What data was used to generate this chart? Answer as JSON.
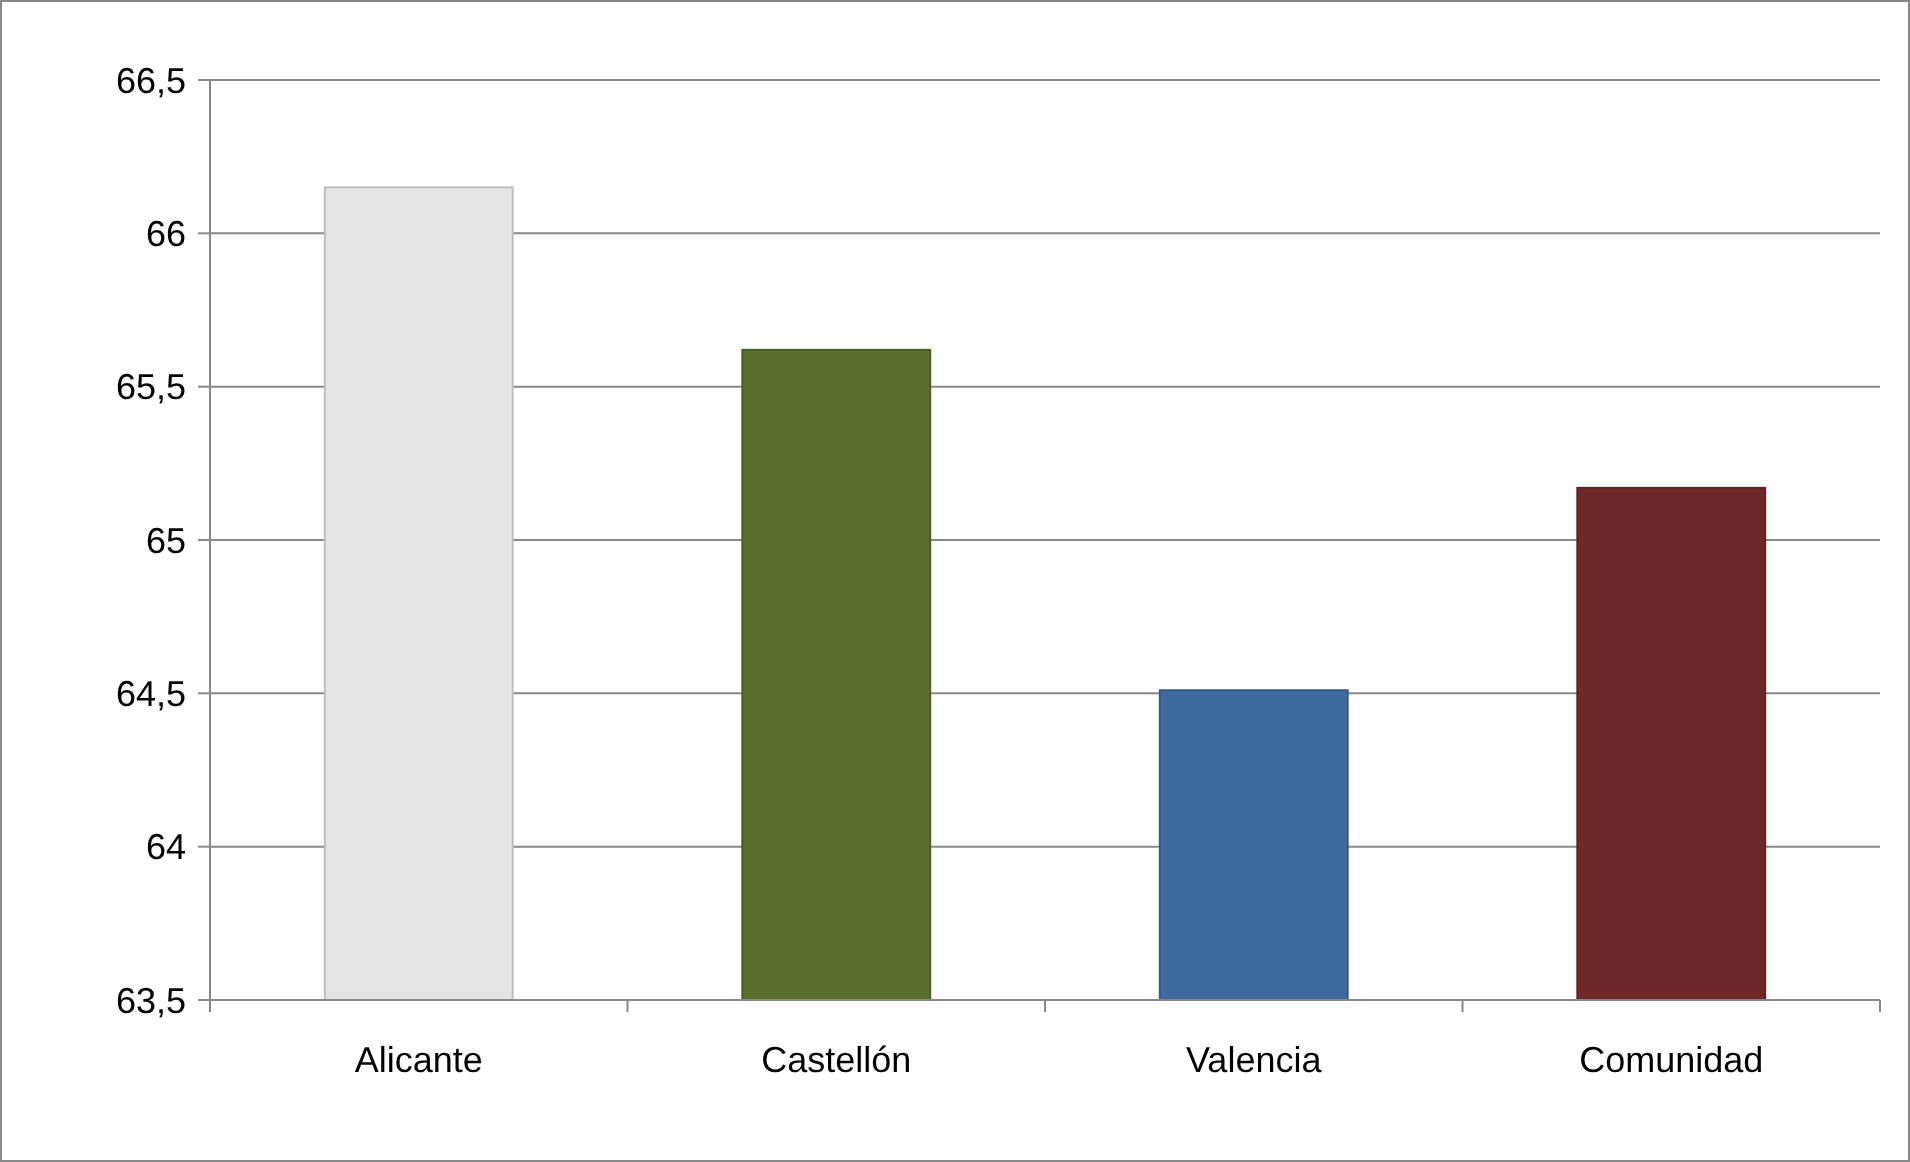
{
  "chart_data": {
    "type": "bar",
    "categories": [
      "Alicante",
      "Castellón",
      "Valencia",
      "Comunidad"
    ],
    "values": [
      66.15,
      65.62,
      64.51,
      65.17
    ],
    "colors": [
      "#e4e4e4",
      "#5a6e2e",
      "#3f6a9e",
      "#6e2a2a"
    ],
    "ylim": [
      63.5,
      66.5
    ],
    "yticks": [
      {
        "value": 63.5,
        "label": "63,5"
      },
      {
        "value": 64,
        "label": "64"
      },
      {
        "value": 64.5,
        "label": "64,5"
      },
      {
        "value": 65,
        "label": "65"
      },
      {
        "value": 65.5,
        "label": "65,5"
      },
      {
        "value": 66,
        "label": "66"
      },
      {
        "value": 66.5,
        "label": "66,5"
      }
    ],
    "grid": "y"
  }
}
